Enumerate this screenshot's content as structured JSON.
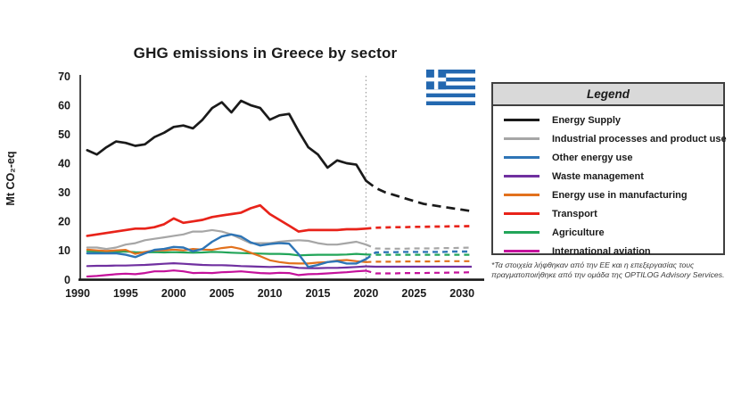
{
  "accent_colors": {
    "flag_blue": "#2368b0",
    "legend_header_bg": "#d9d9d9",
    "legend_border": "#3f3f3f"
  },
  "legend": {
    "title": "Legend",
    "footnote": "*Τα στοιχεία λήφθηκαν από την ΕΕ και η επεξεργασίας τους πραγματοποιήθηκε από την ομάδα της OPTILOG Advisory Services."
  },
  "chart_data": {
    "type": "line",
    "title": "GHG emissions in Greece by sector",
    "ylabel": "Mt CO₂-eq",
    "xlabel": "",
    "x_ticks": [
      1990,
      1995,
      2000,
      2005,
      2010,
      2015,
      2020,
      2025,
      2030
    ],
    "y_ticks": [
      0,
      10,
      20,
      30,
      40,
      50,
      60,
      70
    ],
    "ylim": [
      0,
      70
    ],
    "xlim": [
      1990,
      2032
    ],
    "grid": false,
    "divider_year": 2020,
    "history_start_year": 1991,
    "projection_start_year": 2020,
    "legend_position": "right",
    "series": [
      {
        "name": "Energy Supply",
        "color": "#1a1a1a",
        "width": 2.7,
        "projection_style": "dashed",
        "history": [
          44.5,
          43,
          45.5,
          47.5,
          47,
          46,
          46.5,
          49,
          50.5,
          52.5,
          53,
          52,
          55,
          59,
          61,
          57.5,
          61.5,
          60,
          59,
          55,
          56.5,
          57,
          51,
          45.5,
          43,
          38.5,
          41,
          40,
          39.5,
          34
        ],
        "projection": [
          34,
          31.5,
          30,
          29,
          28,
          27,
          26,
          25.5,
          25,
          24.5,
          24,
          23.5
        ]
      },
      {
        "name": "Industrial processes and product use",
        "color": "#a6a6a6",
        "width": 2.2,
        "projection_style": "dashed",
        "history": [
          11,
          11,
          10.5,
          11,
          12,
          12.5,
          13.5,
          14,
          14.5,
          15,
          15.5,
          16.5,
          16.5,
          17,
          16.5,
          15.5,
          14,
          12.5,
          12.5,
          12.5,
          13,
          13.3,
          13.5,
          13.3,
          12.5,
          12,
          12,
          12.5,
          13,
          12
        ],
        "projection": [
          12,
          10.7,
          10.6,
          10.6,
          10.6,
          10.7,
          10.7,
          10.7,
          10.8,
          10.8,
          10.9,
          11
        ]
      },
      {
        "name": "Other energy use",
        "color": "#2e75b6",
        "width": 2.4,
        "projection_style": "dashed",
        "history": [
          9,
          9,
          9,
          9,
          8.5,
          7.7,
          9,
          10.2,
          10.5,
          11.2,
          11,
          9.7,
          10.5,
          13,
          14.8,
          15.5,
          14.8,
          12.8,
          11.7,
          12.2,
          12.5,
          12.3,
          8.7,
          4.3,
          5,
          6,
          6.3,
          5.5,
          5.5,
          7
        ],
        "projection": [
          7,
          9.3,
          9.4,
          9.4,
          9.5,
          9.5,
          9.5,
          9.5,
          9.5,
          9.6,
          9.6,
          9.6
        ]
      },
      {
        "name": "Waste management",
        "color": "#7030a0",
        "width": 2.2,
        "projection_style": "solid",
        "history": [
          4.6,
          4.7,
          4.7,
          4.8,
          4.8,
          4.9,
          5,
          5.2,
          5.4,
          5.6,
          5.4,
          5.2,
          5,
          4.9,
          4.9,
          4.8,
          4.6,
          4.5,
          4.4,
          4.3,
          4.4,
          4.4,
          4,
          3.9,
          3.9,
          4,
          4,
          4.1,
          4.3,
          4.5
        ],
        "projection": [
          4.5,
          4.4,
          4.4,
          4.4,
          4.4,
          4.4,
          4.4,
          4.4,
          4.4,
          4.4,
          4.4,
          4.4
        ]
      },
      {
        "name": "Energy use in manufacturing",
        "color": "#e2711d",
        "width": 2.2,
        "projection_style": "dashed",
        "history": [
          10.3,
          10,
          9.8,
          10,
          10.2,
          8.8,
          9.5,
          10,
          10,
          10.3,
          10,
          10.5,
          10.3,
          10.2,
          10.8,
          11.2,
          10.5,
          9.2,
          8,
          6.6,
          6,
          5.6,
          5.5,
          5.5,
          5.8,
          6,
          6.5,
          6.7,
          6.3,
          6
        ],
        "projection": [
          6,
          6.1,
          6.1,
          6.1,
          6.2,
          6.2,
          6.2,
          6.2,
          6.3,
          6.3,
          6.3,
          6.3
        ]
      },
      {
        "name": "Transport",
        "color": "#e8231a",
        "width": 2.7,
        "projection_style": "dashed",
        "history": [
          15,
          15.5,
          16,
          16.5,
          17,
          17.5,
          17.5,
          18,
          19,
          21,
          19.5,
          20,
          20.5,
          21.5,
          22,
          22.5,
          23,
          24.5,
          25.5,
          22.5,
          20.5,
          18.5,
          16.5,
          17,
          17,
          17,
          17,
          17.3,
          17.3,
          17.5
        ],
        "projection": [
          17.5,
          17.8,
          17.9,
          18,
          18,
          18.1,
          18.1,
          18.2,
          18.2,
          18.3,
          18.3,
          18.4
        ]
      },
      {
        "name": "Agriculture",
        "color": "#22a559",
        "width": 2.2,
        "projection_style": "dashed",
        "history": [
          9.7,
          9.6,
          9.5,
          9.5,
          9.6,
          9.4,
          9.3,
          9.4,
          9.3,
          9.4,
          9.3,
          9.2,
          9.3,
          9.5,
          9.4,
          9.2,
          9.1,
          9,
          8.9,
          8.8,
          8.8,
          8.7,
          8.3,
          8.4,
          8.5,
          8.5,
          8.5,
          8.6,
          8.8,
          8.6
        ],
        "projection": [
          8.6,
          8.5,
          8.5,
          8.5,
          8.5,
          8.5,
          8.5,
          8.5,
          8.5,
          8.5,
          8.5,
          8.5
        ]
      },
      {
        "name": "International aviation",
        "color": "#c4119b",
        "width": 2.2,
        "projection_style": "dashed",
        "history": [
          1,
          1.2,
          1.5,
          1.8,
          2,
          1.8,
          2.2,
          2.8,
          2.8,
          3.1,
          2.8,
          2.2,
          2.3,
          2.2,
          2.5,
          2.6,
          2.8,
          2.5,
          2.2,
          2.1,
          2.3,
          2.2,
          1.5,
          1.8,
          1.9,
          2.1,
          2.3,
          2.5,
          2.8,
          3
        ],
        "projection": [
          3,
          2.1,
          2.1,
          2.1,
          2.2,
          2.2,
          2.2,
          2.3,
          2.3,
          2.4,
          2.4,
          2.5
        ]
      }
    ]
  }
}
